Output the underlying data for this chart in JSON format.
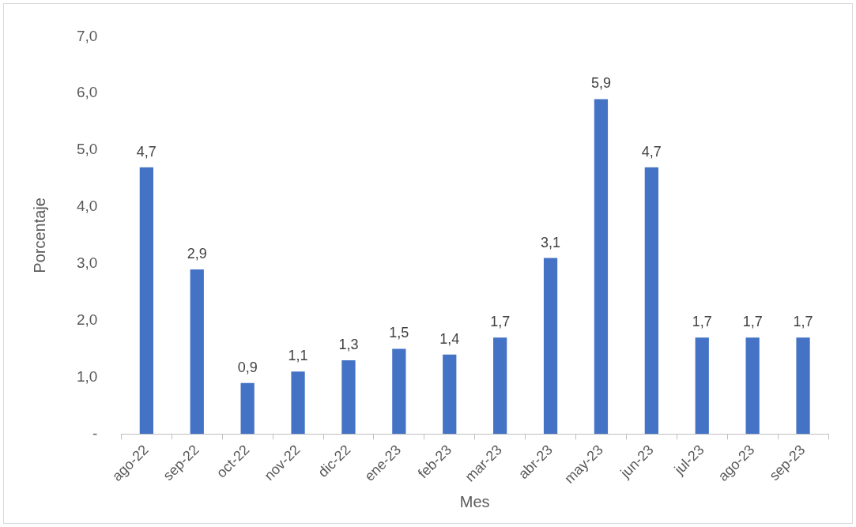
{
  "chart_data": {
    "type": "bar",
    "xlabel": "Mes",
    "ylabel": "Porcentaje",
    "categories": [
      "ago-22",
      "sep-22",
      "oct-22",
      "nov-22",
      "dic-22",
      "ene-23",
      "feb-23",
      "mar-23",
      "abr-23",
      "may-23",
      "jun-23",
      "jul-23",
      "ago-23",
      "sep-23"
    ],
    "values": [
      4.7,
      2.9,
      0.9,
      1.1,
      1.3,
      1.5,
      1.4,
      1.7,
      3.1,
      5.9,
      4.7,
      1.7,
      1.7,
      1.7
    ],
    "value_labels": [
      "4,7",
      "2,9",
      "0,9",
      "1,1",
      "1,3",
      "1,5",
      "1,4",
      "1,7",
      "3,1",
      "5,9",
      "4,7",
      "1,7",
      "1,7",
      "1,7"
    ],
    "color": "#4472c4",
    "ylim": [
      0,
      7
    ],
    "yticks": [
      {
        "value": 0,
        "label": "-"
      },
      {
        "value": 1,
        "label": "1,0"
      },
      {
        "value": 2,
        "label": "2,0"
      },
      {
        "value": 3,
        "label": "3,0"
      },
      {
        "value": 4,
        "label": "4,0"
      },
      {
        "value": 5,
        "label": "5,0"
      },
      {
        "value": 6,
        "label": "6,0"
      },
      {
        "value": 7,
        "label": "7,0"
      }
    ],
    "grid": false,
    "legend": false
  }
}
